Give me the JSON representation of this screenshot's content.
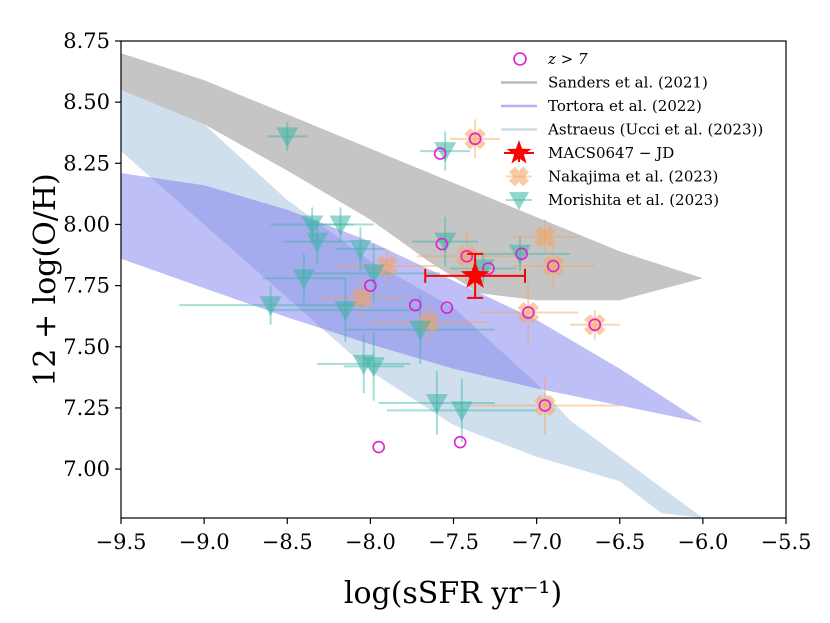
{
  "chart_data": {
    "type": "scatter",
    "xlabel": "log(sSFR yr⁻¹)",
    "ylabel": "12 + log(O/H)",
    "xlim": [
      -9.5,
      -5.5
    ],
    "ylim": [
      6.8,
      8.75
    ],
    "xticks": [
      -9.5,
      -9.0,
      -8.5,
      -8.0,
      -7.5,
      -7.0,
      -6.5,
      -6.0,
      -5.5
    ],
    "xtick_labels": [
      "−9.5",
      "−9.0",
      "−8.5",
      "−8.0",
      "−7.5",
      "−7.0",
      "−6.5",
      "−6.0",
      "−5.5"
    ],
    "yticks": [
      7.0,
      7.25,
      7.5,
      7.75,
      8.0,
      8.25,
      8.5,
      8.75
    ],
    "ytick_labels": [
      "7.00",
      "7.25",
      "7.50",
      "7.75",
      "8.00",
      "8.25",
      "8.50",
      "8.75"
    ],
    "grid": false,
    "legend_position": "top-right",
    "colors": {
      "sanders": "#8c8c8c",
      "tortora": "#6666ee",
      "astraeus": "#8fb3d3",
      "macs": "#ff0000",
      "nakajima": "#f5a25d",
      "morishita": "#3ab5a6",
      "z7": "#e020d0"
    },
    "legend": [
      {
        "key": "z7",
        "label": "z > 7",
        "marker": "circle"
      },
      {
        "key": "sanders",
        "label": "Sanders et al. (2021)",
        "marker": "line"
      },
      {
        "key": "tortora",
        "label": "Tortora et al. (2022)",
        "marker": "line"
      },
      {
        "key": "astraeus",
        "label": "Astraeus (Ucci et al. (2023))",
        "marker": "line"
      },
      {
        "key": "macs",
        "label": "MACS0647 − JD",
        "marker": "star"
      },
      {
        "key": "nakajima",
        "label": "Nakajima et al. (2023)",
        "marker": "cross"
      },
      {
        "key": "morishita",
        "label": "Morishita et al. (2023)",
        "marker": "triangle"
      }
    ],
    "bands": [
      {
        "name": "Sanders et al. (2021)",
        "key": "sanders",
        "upper": [
          [
            -9.5,
            8.7
          ],
          [
            -9.0,
            8.59
          ],
          [
            -8.5,
            8.45
          ],
          [
            -8.0,
            8.31
          ],
          [
            -7.5,
            8.17
          ],
          [
            -7.0,
            8.03
          ],
          [
            -6.5,
            7.89
          ],
          [
            -6.0,
            7.78
          ]
        ],
        "lower": [
          [
            -9.5,
            8.55
          ],
          [
            -9.0,
            8.41
          ],
          [
            -8.5,
            8.22
          ],
          [
            -8.0,
            8.02
          ],
          [
            -7.65,
            7.85
          ],
          [
            -7.35,
            7.72
          ],
          [
            -7.0,
            7.69
          ],
          [
            -6.5,
            7.69
          ],
          [
            -6.0,
            7.78
          ]
        ]
      },
      {
        "name": "Tortora et al. (2022)",
        "key": "tortora",
        "upper": [
          [
            -9.5,
            8.21
          ],
          [
            -9.0,
            8.16
          ],
          [
            -8.5,
            8.06
          ],
          [
            -8.0,
            7.93
          ],
          [
            -7.5,
            7.77
          ],
          [
            -7.0,
            7.61
          ],
          [
            -6.5,
            7.41
          ],
          [
            -6.0,
            7.19
          ]
        ],
        "lower": [
          [
            -9.5,
            7.86
          ],
          [
            -9.0,
            7.74
          ],
          [
            -8.5,
            7.62
          ],
          [
            -8.0,
            7.51
          ],
          [
            -7.5,
            7.41
          ],
          [
            -7.0,
            7.33
          ],
          [
            -6.5,
            7.26
          ],
          [
            -6.0,
            7.19
          ]
        ]
      },
      {
        "name": "Astraeus (Ucci et al. (2023))",
        "key": "astraeus",
        "upper": [
          [
            -9.5,
            8.55
          ],
          [
            -9.0,
            8.41
          ],
          [
            -8.5,
            8.1
          ],
          [
            -8.0,
            7.85
          ],
          [
            -7.5,
            7.66
          ],
          [
            -7.0,
            7.35
          ],
          [
            -6.8,
            7.2
          ]
        ],
        "lower": [
          [
            -9.5,
            8.3
          ],
          [
            -9.0,
            8.0
          ],
          [
            -8.5,
            7.7
          ],
          [
            -8.0,
            7.4
          ],
          [
            -7.5,
            7.18
          ],
          [
            -7.0,
            7.05
          ],
          [
            -6.5,
            6.95
          ],
          [
            -6.5,
            6.95
          ],
          [
            -6.25,
            6.82
          ],
          [
            -6.0,
            6.8
          ]
        ]
      }
    ],
    "macs": {
      "x": -7.37,
      "y": 7.79,
      "xerr": [
        0.3,
        0.3
      ],
      "yerr": [
        0.09,
        0.09
      ]
    },
    "nakajima": [
      {
        "x": -8.05,
        "y": 7.7,
        "xerr": 0.25,
        "yerr": 0.08
      },
      {
        "x": -7.9,
        "y": 7.83,
        "xerr": 0.3,
        "yerr": 0.07
      },
      {
        "x": -7.65,
        "y": 7.6,
        "xerr": 0.35,
        "yerr": 0.08
      },
      {
        "x": -7.42,
        "y": 7.87,
        "xerr": 0.3,
        "yerr": 0.1
      },
      {
        "x": -7.37,
        "y": 8.35,
        "xerr": 0.15,
        "yerr": 0.08
      },
      {
        "x": -7.05,
        "y": 7.64,
        "xerr": 0.3,
        "yerr": 0.13
      },
      {
        "x": -6.95,
        "y": 7.95,
        "xerr": 0.2,
        "yerr": 0.07
      },
      {
        "x": -6.95,
        "y": 7.26,
        "xerr": 0.45,
        "yerr": 0.12
      },
      {
        "x": -6.9,
        "y": 7.83,
        "xerr": 0.25,
        "yerr": 0.09
      },
      {
        "x": -6.65,
        "y": 7.59,
        "xerr": 0.15,
        "yerr": 0.06
      }
    ],
    "morishita": [
      {
        "x": -8.6,
        "y": 7.67,
        "xerr": 0.55,
        "yerr": 0.08
      },
      {
        "x": -8.5,
        "y": 8.36,
        "xerr": 0.12,
        "yerr": 0.06
      },
      {
        "x": -8.4,
        "y": 7.78,
        "xerr": 0.25,
        "yerr": 0.1
      },
      {
        "x": -8.35,
        "y": 8.0,
        "xerr": 0.25,
        "yerr": 0.07
      },
      {
        "x": -8.32,
        "y": 7.93,
        "xerr": 0.2,
        "yerr": 0.09
      },
      {
        "x": -8.18,
        "y": 8.0,
        "xerr": 0.2,
        "yerr": 0.07
      },
      {
        "x": -8.15,
        "y": 7.65,
        "xerr": 0.45,
        "yerr": 0.13
      },
      {
        "x": -8.06,
        "y": 7.9,
        "xerr": 0.15,
        "yerr": 0.09
      },
      {
        "x": -8.04,
        "y": 7.43,
        "xerr": 0.28,
        "yerr": 0.12
      },
      {
        "x": -7.98,
        "y": 7.8,
        "xerr": 0.4,
        "yerr": 0.12
      },
      {
        "x": -7.98,
        "y": 7.42,
        "xerr": 0.18,
        "yerr": 0.14
      },
      {
        "x": -7.7,
        "y": 7.57,
        "xerr": 0.45,
        "yerr": 0.14
      },
      {
        "x": -7.6,
        "y": 7.27,
        "xerr": 0.35,
        "yerr": 0.13
      },
      {
        "x": -7.55,
        "y": 7.93,
        "xerr": 0.2,
        "yerr": 0.1
      },
      {
        "x": -7.55,
        "y": 8.3,
        "xerr": 0.15,
        "yerr": 0.08
      },
      {
        "x": -7.45,
        "y": 7.24,
        "xerr": 0.45,
        "yerr": 0.13
      },
      {
        "x": -7.32,
        "y": 7.82,
        "xerr": 0.2,
        "yerr": 0.06
      },
      {
        "x": -7.1,
        "y": 7.88,
        "xerr": 0.3,
        "yerr": 0.07
      }
    ],
    "z7": [
      {
        "x": -8.0,
        "y": 7.75
      },
      {
        "x": -7.95,
        "y": 7.09
      },
      {
        "x": -7.73,
        "y": 7.67
      },
      {
        "x": -7.58,
        "y": 8.29
      },
      {
        "x": -7.57,
        "y": 7.92
      },
      {
        "x": -7.54,
        "y": 7.66
      },
      {
        "x": -7.46,
        "y": 7.11
      },
      {
        "x": -7.42,
        "y": 7.87
      },
      {
        "x": -7.37,
        "y": 8.35
      },
      {
        "x": -7.29,
        "y": 7.82
      },
      {
        "x": -7.09,
        "y": 7.88
      },
      {
        "x": -7.05,
        "y": 7.64
      },
      {
        "x": -6.95,
        "y": 7.26
      },
      {
        "x": -6.9,
        "y": 7.83
      },
      {
        "x": -6.65,
        "y": 7.59
      }
    ]
  }
}
